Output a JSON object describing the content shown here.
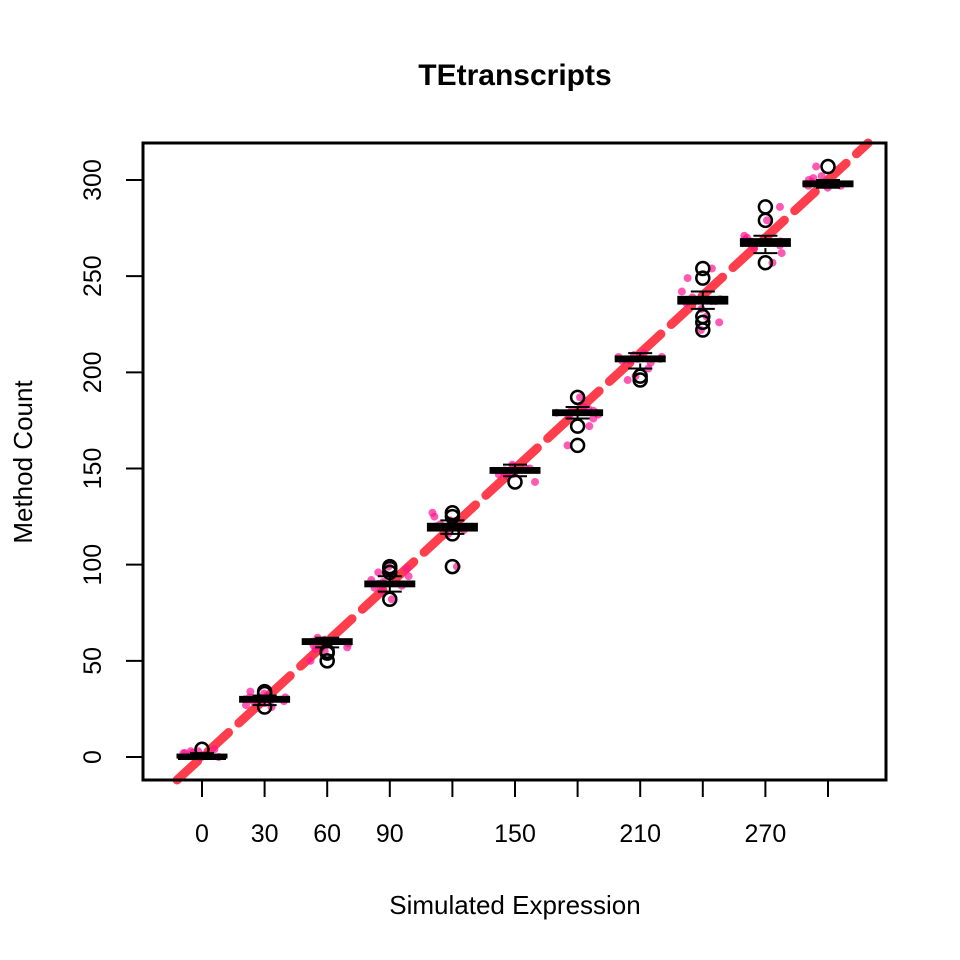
{
  "chart_data": {
    "type": "box",
    "title": "TEtranscripts",
    "xlabel": "Simulated Expression",
    "ylabel": "Method Count",
    "x_ticks": [
      0,
      30,
      60,
      90,
      120,
      150,
      180,
      210,
      240,
      270,
      300
    ],
    "x_tick_labels": [
      "0",
      "30",
      "60",
      "90",
      "",
      "150",
      "",
      "210",
      "",
      "270",
      ""
    ],
    "y_ticks": [
      0,
      50,
      100,
      150,
      200,
      250,
      300
    ],
    "y_tick_labels": [
      "0",
      "50",
      "100",
      "150",
      "200",
      "250",
      "300"
    ],
    "ylim": [
      -12,
      320
    ],
    "grid": false,
    "legend": "none",
    "colors": {
      "box": "#000000",
      "points": "#ff1493",
      "identity_line": "#ff2a3a"
    },
    "identity_line": {
      "slope": 1,
      "intercept": 0,
      "style": "dashed"
    },
    "groups": [
      {
        "x": 0,
        "q1": 0,
        "median": 0,
        "q3": 1,
        "whisker_low": 0,
        "whisker_high": 2,
        "outliers": [
          4
        ],
        "points": [
          0,
          1,
          2,
          3,
          0,
          1,
          2,
          0,
          1,
          3,
          2,
          4
        ]
      },
      {
        "x": 30,
        "q1": 29,
        "median": 30,
        "q3": 31,
        "whisker_low": 27,
        "whisker_high": 32,
        "outliers": [
          26,
          33,
          34
        ],
        "points": [
          26,
          27,
          28,
          29,
          30,
          31,
          32,
          33,
          34,
          30,
          29,
          31
        ]
      },
      {
        "x": 60,
        "q1": 59,
        "median": 60,
        "q3": 61,
        "whisker_low": 57,
        "whisker_high": 62,
        "outliers": [
          50,
          54,
          55
        ],
        "points": [
          50,
          55,
          57,
          58,
          59,
          60,
          61,
          62,
          60,
          59,
          61,
          56
        ]
      },
      {
        "x": 90,
        "q1": 89,
        "median": 90,
        "q3": 91,
        "whisker_low": 86,
        "whisker_high": 94,
        "outliers": [
          82,
          96,
          98,
          99
        ],
        "points": [
          82,
          86,
          88,
          89,
          90,
          91,
          92,
          94,
          96,
          98,
          99,
          90
        ]
      },
      {
        "x": 120,
        "q1": 118,
        "median": 120,
        "q3": 121,
        "whisker_low": 116,
        "whisker_high": 123,
        "outliers": [
          99,
          116,
          125,
          127
        ],
        "points": [
          99,
          116,
          118,
          119,
          120,
          121,
          123,
          125,
          127,
          120,
          119,
          121
        ]
      },
      {
        "x": 150,
        "q1": 148,
        "median": 149,
        "q3": 150,
        "whisker_low": 146,
        "whisker_high": 152,
        "outliers": [
          143
        ],
        "points": [
          143,
          146,
          147,
          148,
          149,
          150,
          151,
          152,
          149,
          148,
          150,
          147
        ]
      },
      {
        "x": 180,
        "q1": 178,
        "median": 179,
        "q3": 180,
        "whisker_low": 176,
        "whisker_high": 182,
        "outliers": [
          162,
          172,
          187
        ],
        "points": [
          162,
          172,
          176,
          178,
          179,
          180,
          181,
          182,
          187,
          179,
          178,
          180
        ]
      },
      {
        "x": 210,
        "q1": 206,
        "median": 207,
        "q3": 208,
        "whisker_low": 202,
        "whisker_high": 210,
        "outliers": [
          196,
          198
        ],
        "points": [
          196,
          198,
          202,
          205,
          206,
          207,
          208,
          209,
          210,
          207,
          206,
          208
        ]
      },
      {
        "x": 240,
        "q1": 236,
        "median": 237,
        "q3": 239,
        "whisker_low": 233,
        "whisker_high": 242,
        "outliers": [
          222,
          226,
          229,
          249,
          254
        ],
        "points": [
          222,
          226,
          229,
          233,
          236,
          237,
          238,
          239,
          242,
          249,
          254,
          237
        ]
      },
      {
        "x": 270,
        "q1": 266,
        "median": 268,
        "q3": 269,
        "whisker_low": 262,
        "whisker_high": 271,
        "outliers": [
          257,
          279,
          286
        ],
        "points": [
          257,
          262,
          265,
          266,
          268,
          269,
          270,
          271,
          279,
          286,
          268,
          267
        ]
      },
      {
        "x": 300,
        "q1": 297,
        "median": 298,
        "q3": 299,
        "whisker_low": 296,
        "whisker_high": 300,
        "outliers": [
          307
        ],
        "points": [
          296,
          297,
          298,
          299,
          300,
          302,
          307,
          298,
          297,
          299,
          301,
          298
        ]
      }
    ]
  }
}
